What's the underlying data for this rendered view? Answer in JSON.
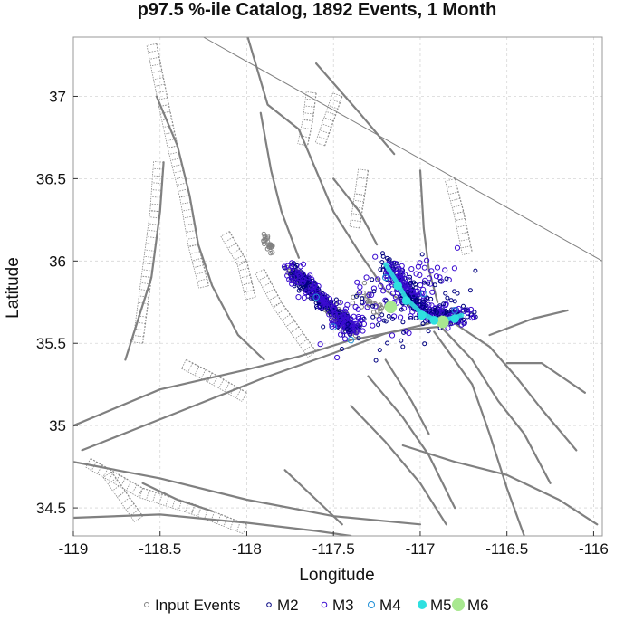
{
  "chart_data": {
    "type": "scatter",
    "title": "p97.5 %-ile Catalog, 1892 Events, 1 Month",
    "xlabel": "Longitude",
    "ylabel": "Latitude",
    "xlim": [
      -119.0,
      -115.95
    ],
    "ylim": [
      34.33,
      37.36
    ],
    "xticks": [
      -119,
      -118.5,
      -118,
      -117.5,
      -117,
      -116.5,
      -116
    ],
    "yticks": [
      34.5,
      35,
      35.5,
      36,
      36.5,
      37
    ],
    "xtick_labels": [
      "-119",
      "-118.5",
      "-118",
      "-117.5",
      "-117",
      "-116.5",
      "-116"
    ],
    "ytick_labels": [
      "34.5",
      "35",
      "35.5",
      "36",
      "36.5",
      "37"
    ],
    "grid": true,
    "legend_position": "bottom",
    "legend": [
      {
        "label": "Input Events",
        "color": "#808080",
        "filled": false
      },
      {
        "label": "M2",
        "color": "#000080",
        "filled": false
      },
      {
        "label": "M3",
        "color": "#3a0bd0",
        "filled": false
      },
      {
        "label": "M4",
        "color": "#1f8fd6",
        "filled": false
      },
      {
        "label": "M5",
        "color": "#2fe0e0",
        "filled": true
      },
      {
        "label": "M6",
        "color": "#a8e890",
        "filled": true
      }
    ],
    "series": [
      {
        "name": "M6",
        "points": [
          [
            -117.17,
            35.72
          ],
          [
            -116.87,
            35.63
          ]
        ]
      },
      {
        "name": "M5",
        "points": [
          [
            -117.13,
            35.85
          ],
          [
            -117.08,
            35.76
          ],
          [
            -116.99,
            35.67
          ],
          [
            -116.92,
            35.64
          ],
          [
            -116.8,
            35.65
          ]
        ]
      },
      {
        "name": "M4",
        "points": [
          [
            -117.5,
            35.6
          ],
          [
            -117.2,
            35.9
          ],
          [
            -116.8,
            35.7
          ],
          [
            -117.4,
            35.52
          ],
          [
            -117.6,
            35.78
          ],
          [
            -116.98,
            35.8
          ]
        ]
      }
    ],
    "input_event_clusters": [
      {
        "path": [
          [
            -117.75,
            35.95
          ],
          [
            -117.38,
            35.57
          ]
        ],
        "count": 260,
        "spread": 0.035
      },
      {
        "path": [
          [
            -117.9,
            36.16
          ],
          [
            -117.85,
            36.05
          ]
        ],
        "count": 24,
        "spread": 0.02
      },
      {
        "path": [
          [
            -117.35,
            35.8
          ],
          [
            -117.2,
            35.68
          ]
        ],
        "count": 30,
        "spread": 0.06
      }
    ],
    "event_clusters": [
      {
        "name": "M2",
        "path": [
          [
            -117.75,
            35.95
          ],
          [
            -117.38,
            35.57
          ]
        ],
        "count": 220,
        "spread": 0.05
      },
      {
        "name": "M3",
        "path": [
          [
            -117.75,
            35.95
          ],
          [
            -117.38,
            35.57
          ]
        ],
        "count": 120,
        "spread": 0.06
      },
      {
        "name": "M2",
        "path": [
          [
            -117.2,
            35.98
          ],
          [
            -116.98,
            35.68
          ],
          [
            -116.72,
            35.66
          ]
        ],
        "count": 260,
        "spread": 0.05
      },
      {
        "name": "M3",
        "path": [
          [
            -117.2,
            35.98
          ],
          [
            -116.98,
            35.68
          ],
          [
            -116.72,
            35.66
          ]
        ],
        "count": 120,
        "spread": 0.06
      },
      {
        "name": "M3",
        "path": [
          [
            -117.45,
            35.65
          ],
          [
            -116.9,
            35.9
          ]
        ],
        "count": 90,
        "spread": 0.18
      },
      {
        "name": "M2",
        "path": [
          [
            -117.4,
            35.55
          ],
          [
            -116.8,
            35.85
          ]
        ],
        "count": 70,
        "spread": 0.22
      }
    ],
    "faults": [
      [
        [
          -118.0,
          37.38
        ],
        [
          -117.88,
          36.95
        ],
        [
          -117.7,
          36.8
        ],
        [
          -117.62,
          36.6
        ],
        [
          -117.5,
          36.3
        ],
        [
          -117.35,
          36.05
        ],
        [
          -117.2,
          35.82
        ],
        [
          -117.02,
          35.7
        ],
        [
          -116.82,
          35.62
        ]
      ],
      [
        [
          -119.0,
          35.0
        ],
        [
          -118.5,
          35.22
        ],
        [
          -118.0,
          35.34
        ],
        [
          -117.7,
          35.42
        ],
        [
          -117.4,
          35.52
        ],
        [
          -117.1,
          35.58
        ],
        [
          -116.9,
          35.6
        ]
      ],
      [
        [
          -118.95,
          34.85
        ],
        [
          -118.4,
          35.08
        ],
        [
          -117.9,
          35.29
        ],
        [
          -117.5,
          35.44
        ],
        [
          -117.2,
          35.56
        ],
        [
          -116.95,
          35.62
        ]
      ],
      [
        [
          -119.0,
          34.78
        ],
        [
          -118.5,
          34.68
        ],
        [
          -118.0,
          34.55
        ],
        [
          -117.5,
          34.45
        ],
        [
          -117.0,
          34.4
        ]
      ],
      [
        [
          -119.0,
          34.44
        ],
        [
          -118.5,
          34.46
        ],
        [
          -118.0,
          34.41
        ],
        [
          -117.6,
          34.36
        ],
        [
          -117.4,
          34.33
        ]
      ],
      [
        [
          -118.52,
          37.0
        ],
        [
          -118.4,
          36.7
        ],
        [
          -118.33,
          36.4
        ],
        [
          -118.28,
          36.1
        ],
        [
          -118.2,
          35.85
        ],
        [
          -118.05,
          35.55
        ],
        [
          -117.9,
          35.4
        ]
      ],
      [
        [
          -117.92,
          36.9
        ],
        [
          -117.86,
          36.55
        ],
        [
          -117.8,
          36.3
        ],
        [
          -117.7,
          36.02
        ]
      ],
      [
        [
          -117.0,
          36.55
        ],
        [
          -116.98,
          36.2
        ],
        [
          -116.95,
          35.95
        ],
        [
          -116.9,
          35.75
        ]
      ],
      [
        [
          -116.8,
          35.62
        ],
        [
          -116.6,
          35.48
        ],
        [
          -116.45,
          35.3
        ],
        [
          -116.3,
          35.1
        ],
        [
          -116.1,
          34.85
        ]
      ],
      [
        [
          -116.88,
          35.6
        ],
        [
          -116.7,
          35.4
        ],
        [
          -116.55,
          35.15
        ],
        [
          -116.4,
          34.95
        ],
        [
          -116.25,
          34.65
        ]
      ],
      [
        [
          -116.92,
          35.57
        ],
        [
          -116.7,
          35.25
        ],
        [
          -116.6,
          34.95
        ],
        [
          -116.5,
          34.62
        ],
        [
          -116.4,
          34.33
        ]
      ],
      [
        [
          -117.3,
          35.3
        ],
        [
          -117.1,
          35.05
        ],
        [
          -116.95,
          34.82
        ],
        [
          -116.8,
          34.5
        ]
      ],
      [
        [
          -117.4,
          35.12
        ],
        [
          -117.2,
          34.9
        ],
        [
          -117.0,
          34.65
        ],
        [
          -116.85,
          34.4
        ]
      ],
      [
        [
          -117.2,
          35.4
        ],
        [
          -117.05,
          35.15
        ],
        [
          -116.95,
          34.95
        ]
      ],
      [
        [
          -117.78,
          34.73
        ],
        [
          -117.6,
          34.55
        ],
        [
          -117.45,
          34.4
        ]
      ],
      [
        [
          -118.6,
          34.65
        ],
        [
          -118.4,
          34.55
        ],
        [
          -118.2,
          34.48
        ]
      ],
      [
        [
          -117.6,
          37.2
        ],
        [
          -117.35,
          36.9
        ],
        [
          -117.15,
          36.65
        ]
      ],
      [
        [
          -117.5,
          36.5
        ],
        [
          -117.35,
          36.3
        ],
        [
          -117.25,
          36.1
        ]
      ],
      [
        [
          -116.6,
          35.55
        ],
        [
          -116.35,
          35.65
        ],
        [
          -116.15,
          35.7
        ]
      ],
      [
        [
          -116.5,
          35.38
        ],
        [
          -116.3,
          35.38
        ],
        [
          -116.05,
          35.2
        ]
      ],
      [
        [
          -118.7,
          35.4
        ],
        [
          -118.55,
          35.9
        ],
        [
          -118.5,
          36.3
        ],
        [
          -118.48,
          36.6
        ]
      ],
      [
        [
          -117.1,
          34.88
        ],
        [
          -116.8,
          34.78
        ],
        [
          -116.5,
          34.7
        ],
        [
          -116.2,
          34.55
        ],
        [
          -115.98,
          34.4
        ]
      ]
    ],
    "hatched_faults": [
      [
        [
          -118.52,
          37.32
        ],
        [
          -118.45,
          36.95
        ],
        [
          -118.4,
          36.7
        ],
        [
          -118.33,
          36.4
        ],
        [
          -118.28,
          36.1
        ],
        [
          -118.22,
          35.85
        ]
      ],
      [
        [
          -118.48,
          36.6
        ],
        [
          -118.5,
          36.3
        ],
        [
          -118.55,
          35.9
        ],
        [
          -118.6,
          35.5
        ]
      ],
      [
        [
          -117.9,
          35.95
        ],
        [
          -117.8,
          35.75
        ],
        [
          -117.7,
          35.6
        ],
        [
          -117.6,
          35.45
        ]
      ],
      [
        [
          -117.45,
          37.0
        ],
        [
          -117.5,
          36.85
        ],
        [
          -117.55,
          36.7
        ]
      ],
      [
        [
          -117.6,
          37.02
        ],
        [
          -117.62,
          36.85
        ],
        [
          -117.65,
          36.7
        ]
      ],
      [
        [
          -117.3,
          36.55
        ],
        [
          -117.32,
          36.4
        ],
        [
          -117.35,
          36.2
        ]
      ],
      [
        [
          -116.8,
          36.5
        ],
        [
          -116.75,
          36.3
        ],
        [
          -116.7,
          36.05
        ]
      ],
      [
        [
          -118.9,
          34.8
        ],
        [
          -118.6,
          34.62
        ],
        [
          -118.3,
          34.52
        ],
        [
          -118.0,
          34.4
        ]
      ],
      [
        [
          -118.1,
          36.18
        ],
        [
          -118.0,
          36.0
        ],
        [
          -117.95,
          35.78
        ]
      ],
      [
        [
          -118.35,
          35.4
        ],
        [
          -118.2,
          35.32
        ],
        [
          -118.0,
          35.2
        ]
      ],
      [
        [
          -118.78,
          34.72
        ],
        [
          -118.7,
          34.6
        ],
        [
          -118.6,
          34.45
        ]
      ]
    ],
    "boundary_line": [
      [
        -118.25,
        37.36
      ],
      [
        -115.95,
        36.0
      ]
    ]
  }
}
